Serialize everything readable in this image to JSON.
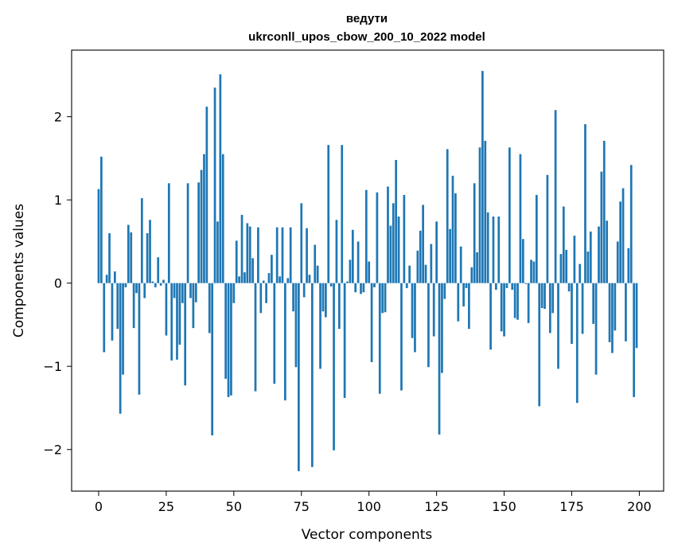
{
  "chart_data": {
    "type": "bar",
    "title": "ведути",
    "subtitle": "ukrconll_upos_cbow_200_10_2022 model",
    "xlabel": "Vector components",
    "ylabel": "Components values",
    "xlim": [
      -10,
      209
    ],
    "ylim": [
      -2.5,
      2.8
    ],
    "xticks": [
      0,
      25,
      50,
      75,
      100,
      125,
      150,
      175,
      200
    ],
    "yticks": [
      -2,
      -1,
      0,
      1,
      2
    ],
    "grid": false,
    "bar_color": "#1f77b4",
    "x": [
      0,
      1,
      2,
      3,
      4,
      5,
      6,
      7,
      8,
      9,
      10,
      11,
      12,
      13,
      14,
      15,
      16,
      17,
      18,
      19,
      20,
      21,
      22,
      23,
      24,
      25,
      26,
      27,
      28,
      29,
      30,
      31,
      32,
      33,
      34,
      35,
      36,
      37,
      38,
      39,
      40,
      41,
      42,
      43,
      44,
      45,
      46,
      47,
      48,
      49,
      50,
      51,
      52,
      53,
      54,
      55,
      56,
      57,
      58,
      59,
      60,
      61,
      62,
      63,
      64,
      65,
      66,
      67,
      68,
      69,
      70,
      71,
      72,
      73,
      74,
      75,
      76,
      77,
      78,
      79,
      80,
      81,
      82,
      83,
      84,
      85,
      86,
      87,
      88,
      89,
      90,
      91,
      92,
      93,
      94,
      95,
      96,
      97,
      98,
      99,
      100,
      101,
      102,
      103,
      104,
      105,
      106,
      107,
      108,
      109,
      110,
      111,
      112,
      113,
      114,
      115,
      116,
      117,
      118,
      119,
      120,
      121,
      122,
      123,
      124,
      125,
      126,
      127,
      128,
      129,
      130,
      131,
      132,
      133,
      134,
      135,
      136,
      137,
      138,
      139,
      140,
      141,
      142,
      143,
      144,
      145,
      146,
      147,
      148,
      149,
      150,
      151,
      152,
      153,
      154,
      155,
      156,
      157,
      158,
      159,
      160,
      161,
      162,
      163,
      164,
      165,
      166,
      167,
      168,
      169,
      170,
      171,
      172,
      173,
      174,
      175,
      176,
      177,
      178,
      179,
      180,
      181,
      182,
      183,
      184,
      185,
      186,
      187,
      188,
      189,
      190,
      191,
      192,
      193,
      194,
      195,
      196,
      197,
      198,
      199
    ],
    "values": [
      1.13,
      1.52,
      -0.83,
      0.1,
      0.6,
      -0.69,
      0.14,
      -0.55,
      -1.57,
      -1.1,
      -0.05,
      0.7,
      0.61,
      -0.54,
      -0.12,
      -1.34,
      1.02,
      -0.18,
      0.6,
      0.76,
      0.02,
      -0.05,
      0.31,
      -0.03,
      0.04,
      -0.63,
      1.2,
      -0.93,
      -0.18,
      -0.92,
      -0.74,
      -0.24,
      -1.23,
      1.2,
      -0.18,
      -0.54,
      -0.23,
      1.21,
      1.36,
      1.55,
      2.12,
      -0.6,
      -1.83,
      2.35,
      0.74,
      2.51,
      1.55,
      -1.15,
      -1.37,
      -1.35,
      -0.24,
      0.51,
      0.08,
      0.82,
      0.13,
      0.72,
      0.68,
      0.3,
      -1.3,
      0.67,
      -0.36,
      0.03,
      -0.24,
      0.12,
      0.34,
      -1.21,
      0.67,
      0.08,
      0.67,
      -1.41,
      0.06,
      0.67,
      -0.34,
      -1.01,
      -2.26,
      0.96,
      -0.17,
      0.66,
      0.1,
      -2.21,
      0.46,
      0.21,
      -1.03,
      -0.34,
      -0.41,
      1.66,
      -0.04,
      -2.01,
      0.76,
      -0.55,
      1.66,
      -1.38,
      0.02,
      0.28,
      0.64,
      -0.11,
      0.5,
      -0.13,
      -0.11,
      1.12,
      0.26,
      -0.95,
      -0.05,
      1.09,
      -1.33,
      -0.36,
      -0.35,
      1.16,
      0.69,
      0.96,
      1.48,
      0.8,
      -1.29,
      1.06,
      -0.06,
      0.21,
      -0.66,
      -0.83,
      0.39,
      0.63,
      0.94,
      0.22,
      -1.01,
      0.47,
      -0.64,
      0.74,
      -1.82,
      -1.08,
      -0.19,
      1.61,
      0.65,
      1.29,
      1.08,
      -0.46,
      0.44,
      -0.28,
      -0.06,
      -0.55,
      0.19,
      1.2,
      0.37,
      1.63,
      2.55,
      1.71,
      0.85,
      -0.8,
      0.8,
      -0.08,
      0.8,
      -0.58,
      -0.64,
      -0.06,
      1.63,
      -0.08,
      -0.42,
      -0.44,
      1.55,
      0.53,
      -0.01,
      -0.48,
      0.28,
      0.26,
      1.06,
      -1.48,
      -0.3,
      -0.31,
      1.3,
      -0.6,
      -0.36,
      2.08,
      -1.03,
      0.35,
      0.92,
      0.4,
      -0.1,
      -0.73,
      0.57,
      -1.44,
      0.23,
      -0.61,
      1.91,
      0.38,
      0.62,
      -0.49,
      -1.1,
      0.68,
      1.34,
      1.71,
      0.75,
      -0.71,
      -0.84,
      -0.57,
      0.5,
      0.98,
      1.14,
      -0.7,
      0.42,
      1.42,
      -1.37,
      -0.78
    ]
  }
}
